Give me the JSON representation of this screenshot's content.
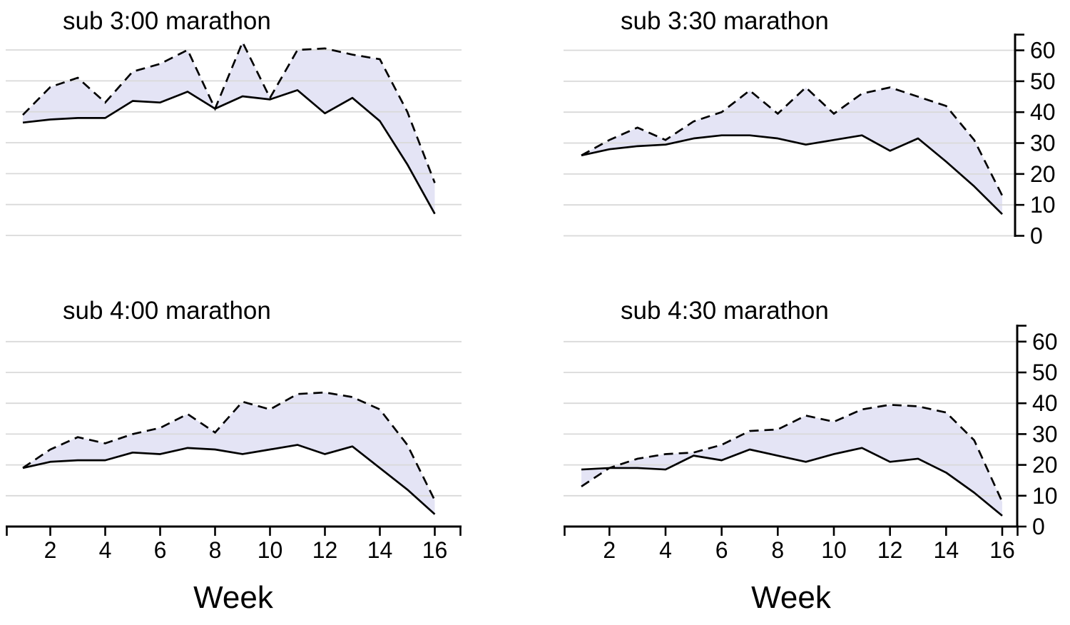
{
  "figure": {
    "xlabel": "Week",
    "colors": {
      "background": "#ffffff",
      "band_fill": "#e4e4f5",
      "gridline": "#d9d9d9",
      "line": "#000000"
    }
  },
  "chart_data": [
    {
      "type": "line",
      "title": "sub 3:00 marathon",
      "position": "top-left",
      "x": [
        1,
        2,
        3,
        4,
        5,
        6,
        7,
        8,
        9,
        10,
        11,
        12,
        13,
        14,
        15,
        16
      ],
      "series": [
        {
          "name": "solid",
          "style": "solid",
          "values": [
            36.5,
            37.5,
            38,
            38,
            43.5,
            43,
            46.5,
            41,
            45,
            44,
            47,
            39.5,
            44.5,
            37,
            23,
            7
          ]
        },
        {
          "name": "dashed",
          "style": "dashed",
          "values": [
            39,
            48,
            51,
            43,
            53,
            55.5,
            60,
            41,
            62.5,
            44.5,
            60,
            60.5,
            58.5,
            57,
            40,
            17
          ]
        }
      ],
      "band_fill_between_series": true,
      "grid": true,
      "xlim": [
        1,
        16
      ],
      "ylim": [
        0,
        65
      ],
      "y_ticks": [
        0,
        10,
        20,
        30,
        40,
        50,
        60
      ],
      "x_tick_labels": [],
      "y_axis_side": "none",
      "x_axis_shown": false
    },
    {
      "type": "line",
      "title": "sub 3:30 marathon",
      "position": "top-right",
      "x": [
        1,
        2,
        3,
        4,
        5,
        6,
        7,
        8,
        9,
        10,
        11,
        12,
        13,
        14,
        15,
        16
      ],
      "series": [
        {
          "name": "solid",
          "style": "solid",
          "values": [
            26,
            28,
            29,
            29.5,
            31.5,
            32.5,
            32.5,
            31.5,
            29.5,
            31,
            32.5,
            27.5,
            31.5,
            24,
            16,
            7
          ]
        },
        {
          "name": "dashed",
          "style": "dashed",
          "values": [
            26,
            31,
            35,
            31,
            37,
            40,
            47,
            39.5,
            48,
            39.5,
            46,
            48,
            45,
            42,
            31,
            13
          ]
        }
      ],
      "band_fill_between_series": true,
      "grid": true,
      "xlim": [
        1,
        16
      ],
      "ylim": [
        0,
        65
      ],
      "y_ticks": [
        0,
        10,
        20,
        30,
        40,
        50,
        60
      ],
      "x_tick_labels": [],
      "y_axis_side": "right",
      "x_axis_shown": false
    },
    {
      "type": "line",
      "title": "sub 4:00 marathon",
      "position": "bottom-left",
      "x": [
        1,
        2,
        3,
        4,
        5,
        6,
        7,
        8,
        9,
        10,
        11,
        12,
        13,
        14,
        15,
        16
      ],
      "series": [
        {
          "name": "solid",
          "style": "solid",
          "values": [
            19,
            21,
            21.5,
            21.5,
            24,
            23.5,
            25.5,
            25,
            23.5,
            25,
            26.5,
            23.5,
            26,
            19,
            12,
            4
          ]
        },
        {
          "name": "dashed",
          "style": "dashed",
          "values": [
            19,
            25,
            29,
            27,
            30,
            32,
            36.5,
            30.5,
            40.5,
            38,
            43,
            43.5,
            42,
            38,
            26.5,
            8.5
          ]
        }
      ],
      "band_fill_between_series": true,
      "grid": true,
      "xlim": [
        1,
        16
      ],
      "ylim": [
        0,
        65
      ],
      "y_ticks": [
        0,
        10,
        20,
        30,
        40,
        50,
        60
      ],
      "x_tick_labels": [
        2,
        4,
        6,
        8,
        10,
        12,
        14,
        16
      ],
      "xlabel": "Week",
      "y_axis_side": "none",
      "x_axis_shown": true
    },
    {
      "type": "line",
      "title": "sub 4:30 marathon",
      "position": "bottom-right",
      "x": [
        1,
        2,
        3,
        4,
        5,
        6,
        7,
        8,
        9,
        10,
        11,
        12,
        13,
        14,
        15,
        16
      ],
      "series": [
        {
          "name": "solid",
          "style": "solid",
          "values": [
            18.5,
            19,
            19,
            18.5,
            23,
            21.5,
            25,
            23,
            21,
            23.5,
            25.5,
            21,
            22,
            17.5,
            11,
            3.5
          ]
        },
        {
          "name": "dashed",
          "style": "dashed",
          "values": [
            13,
            19,
            22,
            23.5,
            24,
            26.5,
            31,
            31.5,
            36,
            34,
            38,
            39.5,
            39,
            37,
            28,
            8
          ]
        }
      ],
      "band_fill_between_series": true,
      "grid": true,
      "xlim": [
        1,
        16
      ],
      "ylim": [
        0,
        65
      ],
      "y_ticks": [
        0,
        10,
        20,
        30,
        40,
        50,
        60
      ],
      "x_tick_labels": [
        2,
        4,
        6,
        8,
        10,
        12,
        14,
        16
      ],
      "xlabel": "Week",
      "y_axis_side": "right",
      "x_axis_shown": true
    }
  ]
}
